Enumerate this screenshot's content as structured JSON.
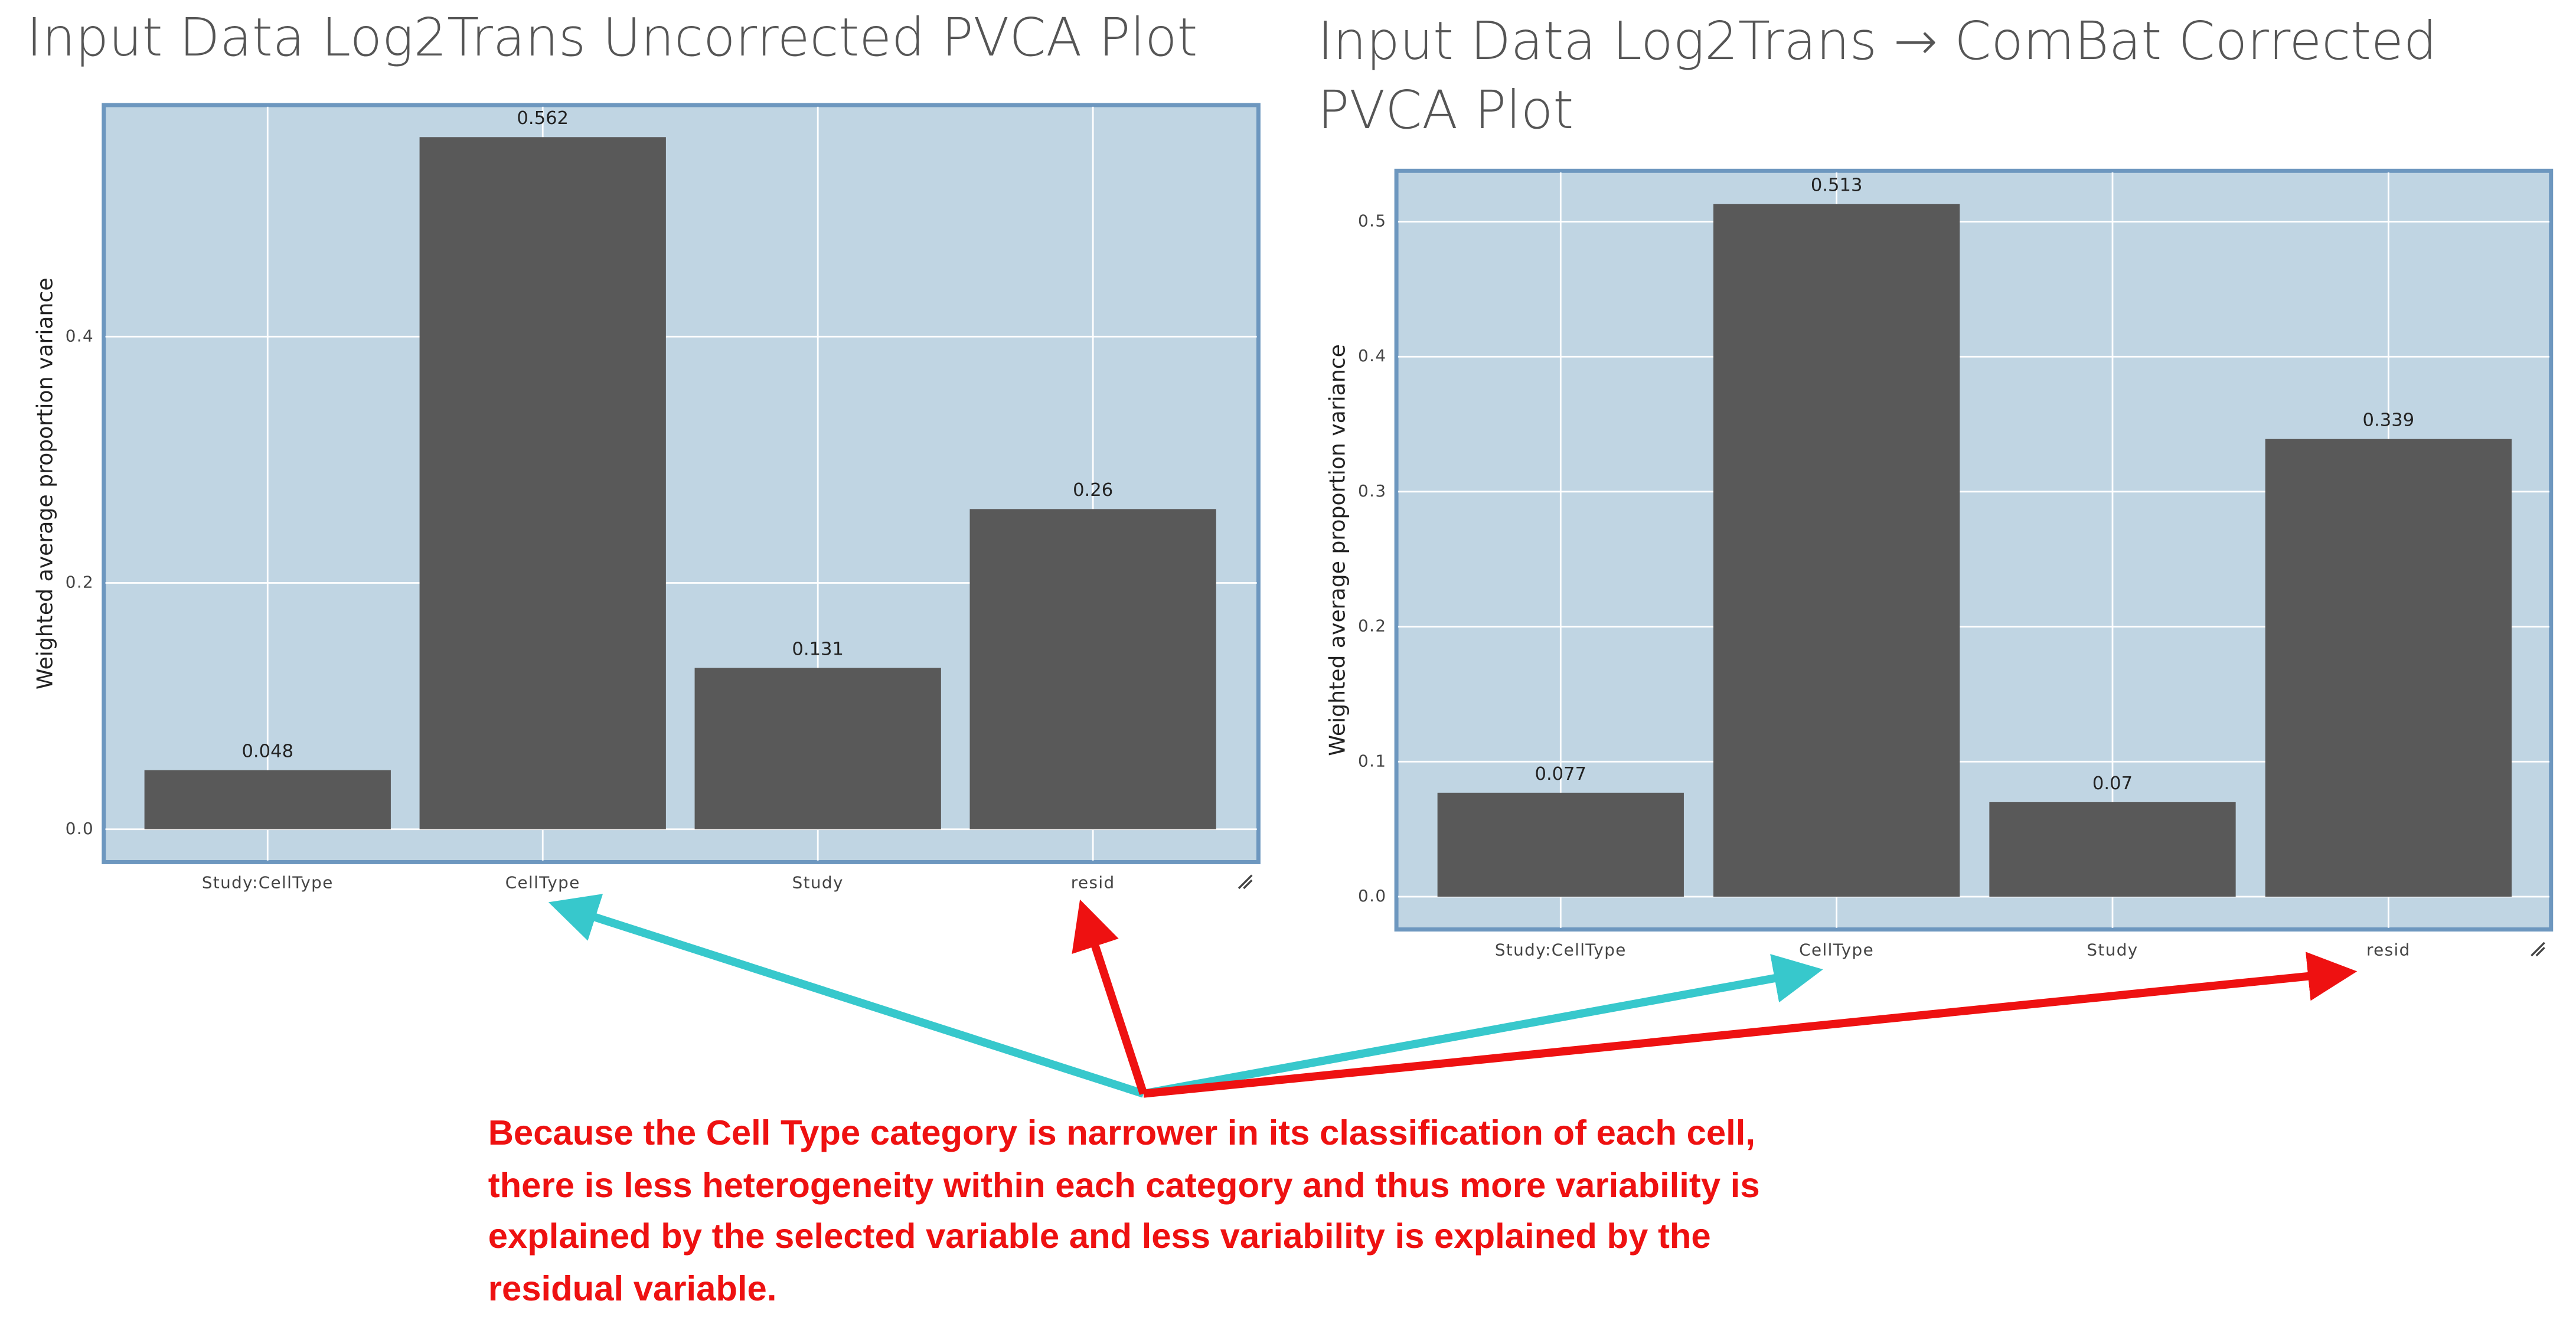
{
  "chart_data": [
    {
      "type": "bar",
      "title": "Input Data Log2Trans Uncorrected PVCA Plot",
      "y_label": "Weighted average proportion variance",
      "categories": [
        "Study:CellType",
        "CellType",
        "Study",
        "resid"
      ],
      "values": [
        0.048,
        0.562,
        0.131,
        0.26
      ],
      "color": "#595959",
      "ylim": [
        -0.0267,
        0.588
      ],
      "yticks": [
        {
          "value": 0,
          "label": "0.0"
        },
        0.2,
        0.4
      ],
      "grid": true
    },
    {
      "type": "bar",
      "title": "Input Data Log2Trans → ComBat Corrected PVCA Plot",
      "y_label": "Weighted average proportion variance",
      "categories": [
        "Study:CellType",
        "CellType",
        "Study",
        "resid"
      ],
      "values": [
        0.077,
        0.513,
        0.07,
        0.339
      ],
      "color": "#595959",
      "ylim": [
        -0.0243,
        0.5377
      ],
      "yticks": [
        {
          "value": 0,
          "label": "0.0"
        },
        0.1,
        0.2,
        0.3,
        0.4,
        0.5
      ],
      "grid": true
    }
  ],
  "annotation": "Because the Cell Type category is narrower in its classification of each cell, there is less heterogeneity within each category and thus more variability is explained by the selected variable and less variability is explained by the residual variable."
}
